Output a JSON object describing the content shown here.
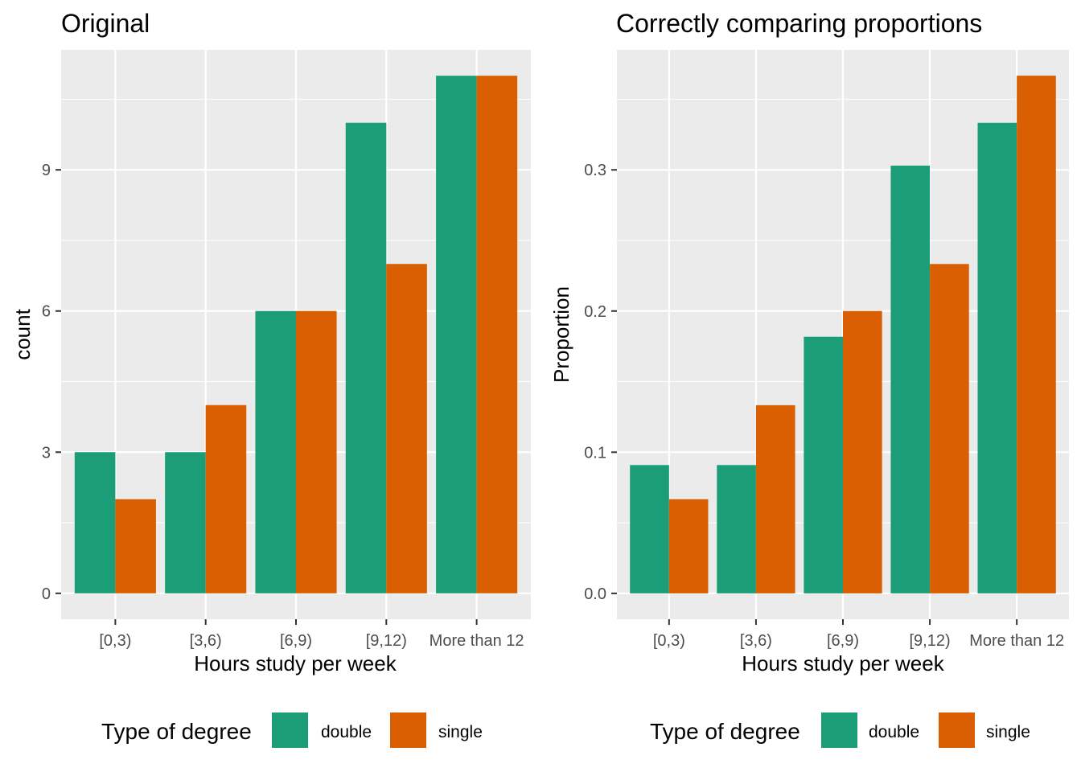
{
  "legend": {
    "title": "Type of degree",
    "entries": [
      {
        "label": "double",
        "color": "#1B9E77"
      },
      {
        "label": "single",
        "color": "#D95F02"
      }
    ]
  },
  "chart_data": [
    {
      "type": "bar",
      "title": "Original",
      "xlabel": "Hours study per week",
      "ylabel": "count",
      "categories": [
        "[0,3)",
        "[3,6)",
        "[6,9)",
        "[9,12)",
        "More than 12"
      ],
      "series": [
        {
          "name": "double",
          "color": "#1B9E77",
          "values": [
            3,
            3,
            6,
            10,
            11
          ]
        },
        {
          "name": "single",
          "color": "#D95F02",
          "values": [
            2,
            4,
            6,
            7,
            11
          ]
        }
      ],
      "yticks": [
        0,
        3,
        6,
        9
      ],
      "ytick_labels": [
        "0",
        "3",
        "6",
        "9"
      ],
      "ylim": [
        -0.55,
        11.55
      ],
      "grid": true,
      "legend_position": "bottom"
    },
    {
      "type": "bar",
      "title": "Correctly comparing proportions",
      "xlabel": "Hours study per week",
      "ylabel": "Proportion",
      "categories": [
        "[0,3)",
        "[3,6)",
        "[6,9)",
        "[9,12)",
        "More than 12"
      ],
      "series": [
        {
          "name": "double",
          "color": "#1B9E77",
          "values": [
            0.0909,
            0.0909,
            0.1818,
            0.303,
            0.3333
          ]
        },
        {
          "name": "single",
          "color": "#D95F02",
          "values": [
            0.0667,
            0.1333,
            0.2,
            0.2333,
            0.3667
          ]
        }
      ],
      "yticks": [
        0.0,
        0.1,
        0.2,
        0.3
      ],
      "ytick_labels": [
        "0.0",
        "0.1",
        "0.2",
        "0.3"
      ],
      "ylim": [
        -0.0183,
        0.385
      ],
      "grid": true,
      "legend_position": "bottom"
    }
  ]
}
